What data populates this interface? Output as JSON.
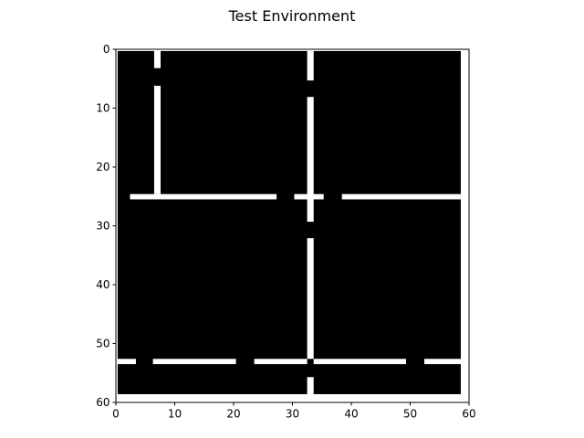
{
  "figure": {
    "title": "Test Environment"
  },
  "chart_data": {
    "type": "heatmap",
    "title": "Test Environment",
    "xlim": [
      0,
      60
    ],
    "ylim": [
      60,
      0
    ],
    "x_ticks": [
      "0",
      "10",
      "20",
      "30",
      "40",
      "50",
      "60"
    ],
    "y_ticks": [
      "0",
      "10",
      "20",
      "30",
      "40",
      "50",
      "60"
    ],
    "grid": false,
    "colormap": [
      "#000000",
      "#ffffff"
    ],
    "background_region": {
      "x": [
        0,
        60
      ],
      "y": [
        0,
        60
      ],
      "value": 1
    },
    "wall_region": {
      "x": [
        0.3,
        58.6
      ],
      "y": [
        0.3,
        58.6
      ],
      "value": 0
    },
    "corridors": [
      {
        "orientation": "vertical",
        "x": [
          6.5,
          7.6
        ],
        "y": [
          0,
          3.2
        ]
      },
      {
        "orientation": "vertical",
        "x": [
          6.5,
          7.6
        ],
        "y": [
          6.2,
          24.6
        ]
      },
      {
        "orientation": "vertical",
        "x": [
          32.5,
          33.6
        ],
        "y": [
          0,
          5.3
        ]
      },
      {
        "orientation": "vertical",
        "x": [
          32.5,
          33.6
        ],
        "y": [
          8.1,
          29.3
        ]
      },
      {
        "orientation": "vertical",
        "x": [
          32.5,
          33.6
        ],
        "y": [
          32.1,
          52.6
        ]
      },
      {
        "orientation": "vertical",
        "x": [
          32.5,
          33.6
        ],
        "y": [
          55.7,
          60
        ]
      },
      {
        "orientation": "horizontal",
        "x": [
          2.4,
          27.3
        ],
        "y": [
          24.6,
          25.5
        ]
      },
      {
        "orientation": "horizontal",
        "x": [
          30.3,
          35.3
        ],
        "y": [
          24.6,
          25.5
        ]
      },
      {
        "orientation": "horizontal",
        "x": [
          38.4,
          58.6
        ],
        "y": [
          24.6,
          25.5
        ]
      },
      {
        "orientation": "horizontal",
        "x": [
          0.3,
          3.4
        ],
        "y": [
          52.6,
          53.5
        ]
      },
      {
        "orientation": "horizontal",
        "x": [
          6.3,
          20.4
        ],
        "y": [
          52.6,
          53.5
        ]
      },
      {
        "orientation": "horizontal",
        "x": [
          23.5,
          32.5
        ],
        "y": [
          52.6,
          53.5
        ]
      },
      {
        "orientation": "horizontal",
        "x": [
          33.6,
          49.3
        ],
        "y": [
          52.6,
          53.5
        ]
      },
      {
        "orientation": "horizontal",
        "x": [
          52.4,
          58.6
        ],
        "y": [
          52.6,
          53.5
        ]
      }
    ]
  }
}
